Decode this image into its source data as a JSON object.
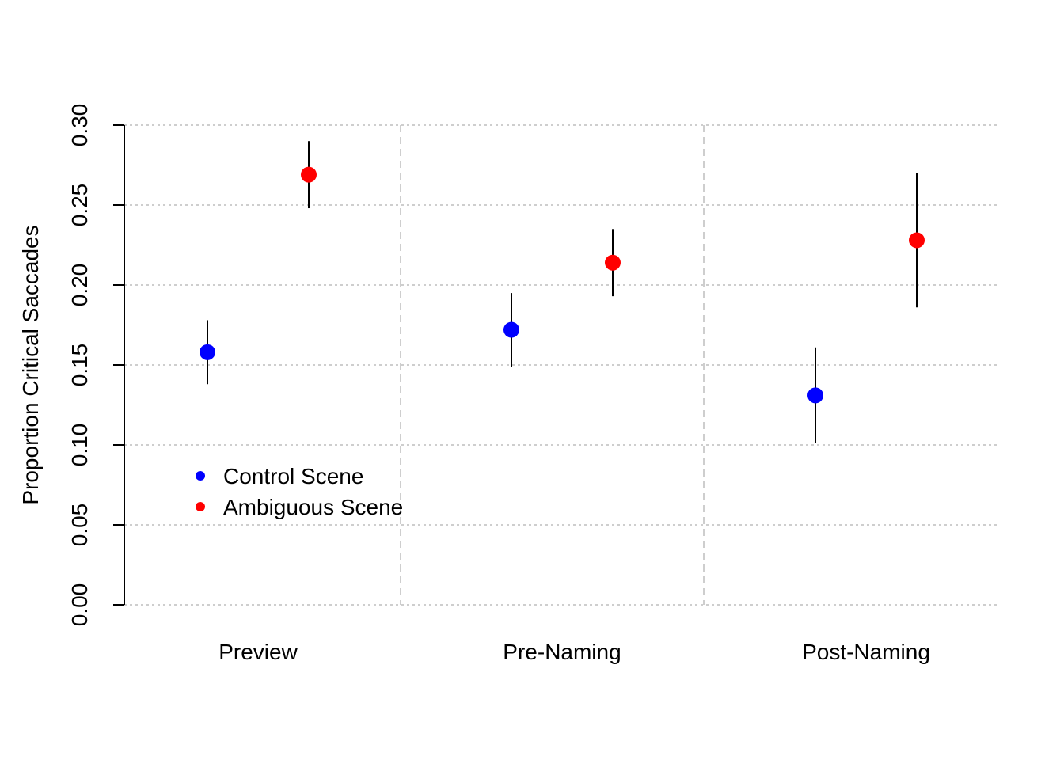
{
  "chart_data": {
    "type": "scatter",
    "title": "",
    "xlabel": "",
    "ylabel": "Proportion Critical Saccades",
    "ylim": [
      0,
      0.3
    ],
    "yticks": [
      "0.00",
      "0.05",
      "0.10",
      "0.15",
      "0.20",
      "0.25",
      "0.30"
    ],
    "categories": [
      "Preview",
      "Pre-Naming",
      "Post-Naming"
    ],
    "grid": true,
    "legend_position": "bottom-left",
    "series": [
      {
        "name": "Control Scene",
        "color": "#0000ff",
        "values": [
          0.158,
          0.172,
          0.131
        ],
        "lower": [
          0.138,
          0.149,
          0.101
        ],
        "upper": [
          0.178,
          0.195,
          0.161
        ]
      },
      {
        "name": "Ambiguous Scene",
        "color": "#ff0000",
        "values": [
          0.269,
          0.214,
          0.228
        ],
        "lower": [
          0.248,
          0.193,
          0.186
        ],
        "upper": [
          0.29,
          0.235,
          0.27
        ]
      }
    ]
  }
}
